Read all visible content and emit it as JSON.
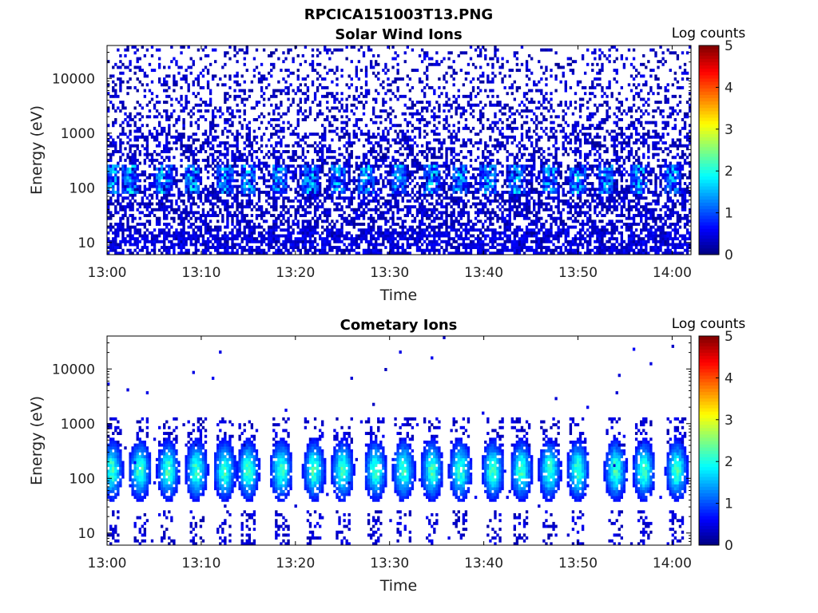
{
  "figure": {
    "main_title": "RPCICA151003T13.PNG"
  },
  "chart_data": [
    {
      "type": "heatmap",
      "title": "Solar Wind Ions",
      "xlabel": "Time",
      "ylabel": "Energy (eV)",
      "x_ticks": [
        "13:00",
        "13:10",
        "13:20",
        "13:30",
        "13:40",
        "13:50",
        "14:00"
      ],
      "x_range": [
        "13:00",
        "14:02"
      ],
      "y_scale": "log",
      "y_ticks": [
        "10",
        "100",
        "1000",
        "10000"
      ],
      "y_range": [
        6,
        40000
      ],
      "colorbar": {
        "label": "Log counts",
        "range": [
          0,
          5
        ],
        "ticks": [
          "0",
          "1",
          "2",
          "3",
          "4",
          "5"
        ],
        "colormap": "jet"
      },
      "description_of_content": "sparse low-count speckle across 6 eV - 40 keV with brighter bursts near 100 eV",
      "bursts_minutes": [
        0.5,
        2.5,
        6,
        9,
        12.5,
        15,
        18.3,
        21.5,
        24.5,
        27.5,
        31,
        34.5,
        37.5,
        40.5,
        43.5,
        47,
        50,
        53,
        56.5,
        60
      ]
    },
    {
      "type": "heatmap",
      "title": "Cometary Ions",
      "xlabel": "Time",
      "ylabel": "Energy (eV)",
      "x_ticks": [
        "13:00",
        "13:10",
        "13:20",
        "13:30",
        "13:40",
        "13:50",
        "14:00"
      ],
      "x_range": [
        "13:00",
        "14:02"
      ],
      "y_scale": "log",
      "y_ticks": [
        "10",
        "100",
        "1000",
        "10000"
      ],
      "y_range": [
        6,
        40000
      ],
      "colorbar": {
        "label": "Log counts",
        "range": [
          0,
          5
        ],
        "ticks": [
          "0",
          "1",
          "2",
          "3",
          "4",
          "5"
        ],
        "colormap": "jet"
      },
      "description_of_content": "periodic blobs centred near 100-200 eV, peak log counts about 2.5",
      "blob_centers_minutes": [
        0.5,
        3.5,
        6.5,
        9.5,
        12.5,
        15,
        18.5,
        22,
        25,
        28.5,
        31.5,
        34.5,
        37.5,
        41,
        44,
        47,
        50,
        54,
        57,
        60.5
      ]
    }
  ]
}
